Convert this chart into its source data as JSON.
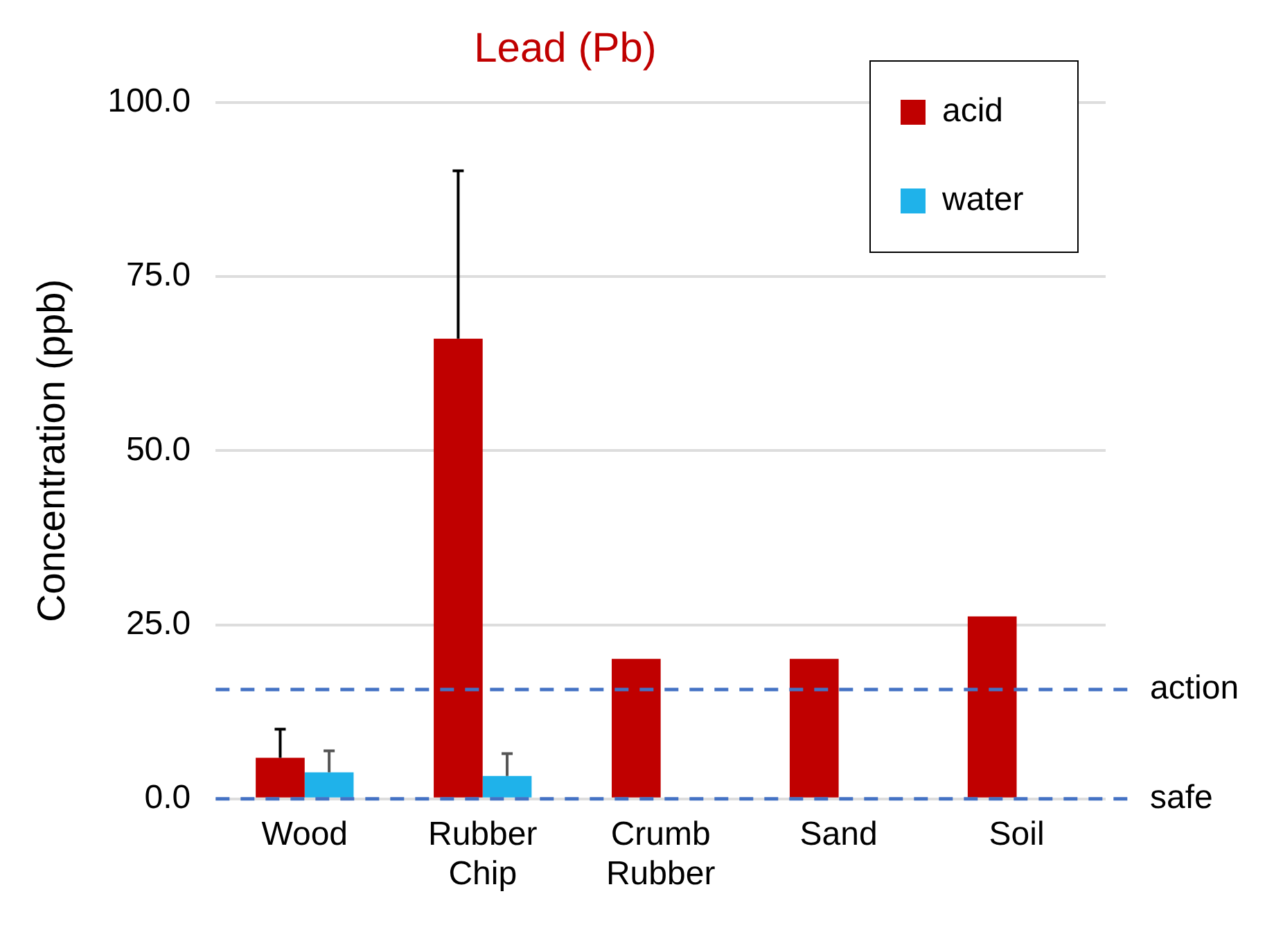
{
  "chart_data": {
    "type": "bar",
    "title": "Lead (Pb)",
    "ylabel": "Concentration (ppb)",
    "categories": [
      "Wood",
      "Rubber\nChip",
      "Crumb\nRubber",
      "Sand",
      "Soil"
    ],
    "series": [
      {
        "name": "acid",
        "color": "#c00000",
        "values": [
          5.9,
          66.1,
          20.1,
          20.1,
          26.2
        ],
        "errors": [
          [
            5.9,
            10.0
          ],
          [
            66.1,
            90.2
          ],
          null,
          null,
          null
        ]
      },
      {
        "name": "water",
        "color": "#1fb2ea",
        "values": [
          3.8,
          3.3,
          null,
          null,
          null
        ],
        "errors": [
          [
            3.8,
            6.9
          ],
          [
            3.3,
            6.5
          ],
          null,
          null,
          null
        ]
      }
    ],
    "ylim": [
      0,
      100
    ],
    "yticks": [
      {
        "value": 0,
        "label": "0.0"
      },
      {
        "value": 25,
        "label": "25.0"
      },
      {
        "value": 50,
        "label": "50.0"
      },
      {
        "value": 75,
        "label": "75.0"
      },
      {
        "value": 100,
        "label": "100.0"
      }
    ],
    "grid": "y",
    "legend": "top right",
    "ref_lines": [
      {
        "axis": "y",
        "value": 15.7,
        "label": "action",
        "color": "#4472c4",
        "line_style": "dashed"
      },
      {
        "axis": "y",
        "value": 0,
        "label": "safe",
        "color": "#4472c4",
        "line_style": "dashed"
      }
    ]
  }
}
